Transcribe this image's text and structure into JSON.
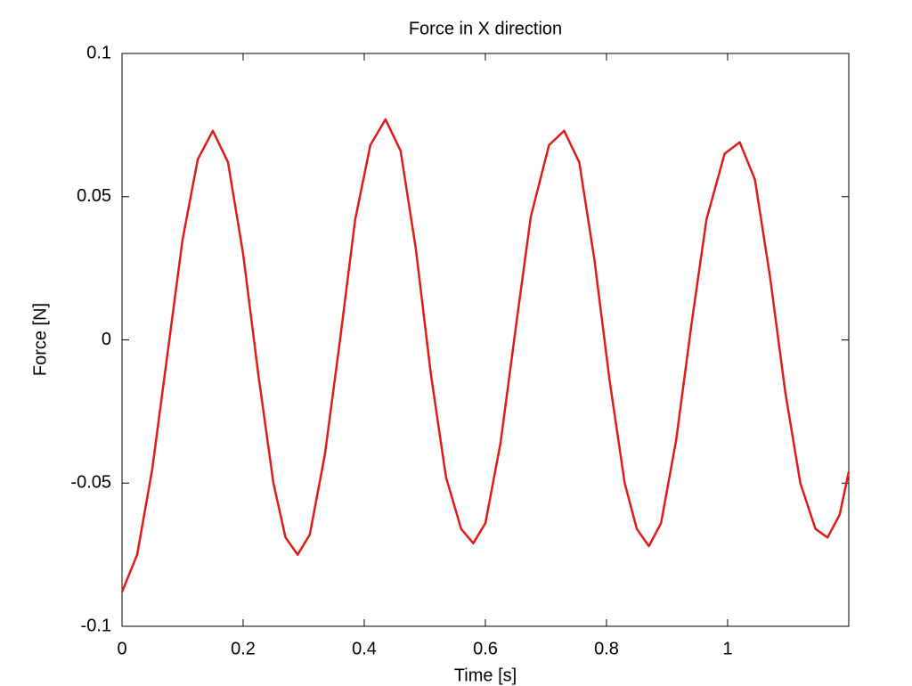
{
  "chart_data": {
    "type": "line",
    "title": "Force in X direction",
    "x_label": "Time [s]",
    "y_label": "Force [N]",
    "x": [
      0,
      0.025,
      0.05,
      0.075,
      0.1,
      0.125,
      0.15,
      0.175,
      0.2,
      0.225,
      0.25,
      0.27,
      0.29,
      0.31,
      0.335,
      0.36,
      0.385,
      0.41,
      0.435,
      0.46,
      0.485,
      0.51,
      0.535,
      0.56,
      0.58,
      0.6,
      0.625,
      0.65,
      0.675,
      0.705,
      0.73,
      0.755,
      0.78,
      0.805,
      0.83,
      0.85,
      0.87,
      0.89,
      0.915,
      0.94,
      0.965,
      0.995,
      1.02,
      1.045,
      1.07,
      1.095,
      1.12,
      1.145,
      1.165,
      1.185,
      1.2
    ],
    "series": [
      {
        "name": "Force",
        "color": "#dd1c1a",
        "values": [
          -0.088,
          -0.075,
          -0.045,
          -0.005,
          0.035,
          0.063,
          0.073,
          0.062,
          0.03,
          -0.012,
          -0.05,
          -0.069,
          -0.075,
          -0.068,
          -0.04,
          0.0,
          0.042,
          0.068,
          0.077,
          0.066,
          0.032,
          -0.012,
          -0.048,
          -0.066,
          -0.071,
          -0.064,
          -0.036,
          0.004,
          0.043,
          0.068,
          0.073,
          0.062,
          0.028,
          -0.014,
          -0.05,
          -0.066,
          -0.072,
          -0.064,
          -0.035,
          0.005,
          0.042,
          0.065,
          0.069,
          0.056,
          0.022,
          -0.018,
          -0.05,
          -0.066,
          -0.069,
          -0.061,
          -0.046
        ]
      }
    ],
    "xlim": [
      0,
      1.2
    ],
    "xticks": [
      0,
      0.2,
      0.4,
      0.6,
      0.8,
      1
    ],
    "ylim": [
      -0.1,
      0.1
    ],
    "yticks": [
      -0.1,
      -0.05,
      0,
      0.05,
      0.1
    ],
    "grid": false
  }
}
